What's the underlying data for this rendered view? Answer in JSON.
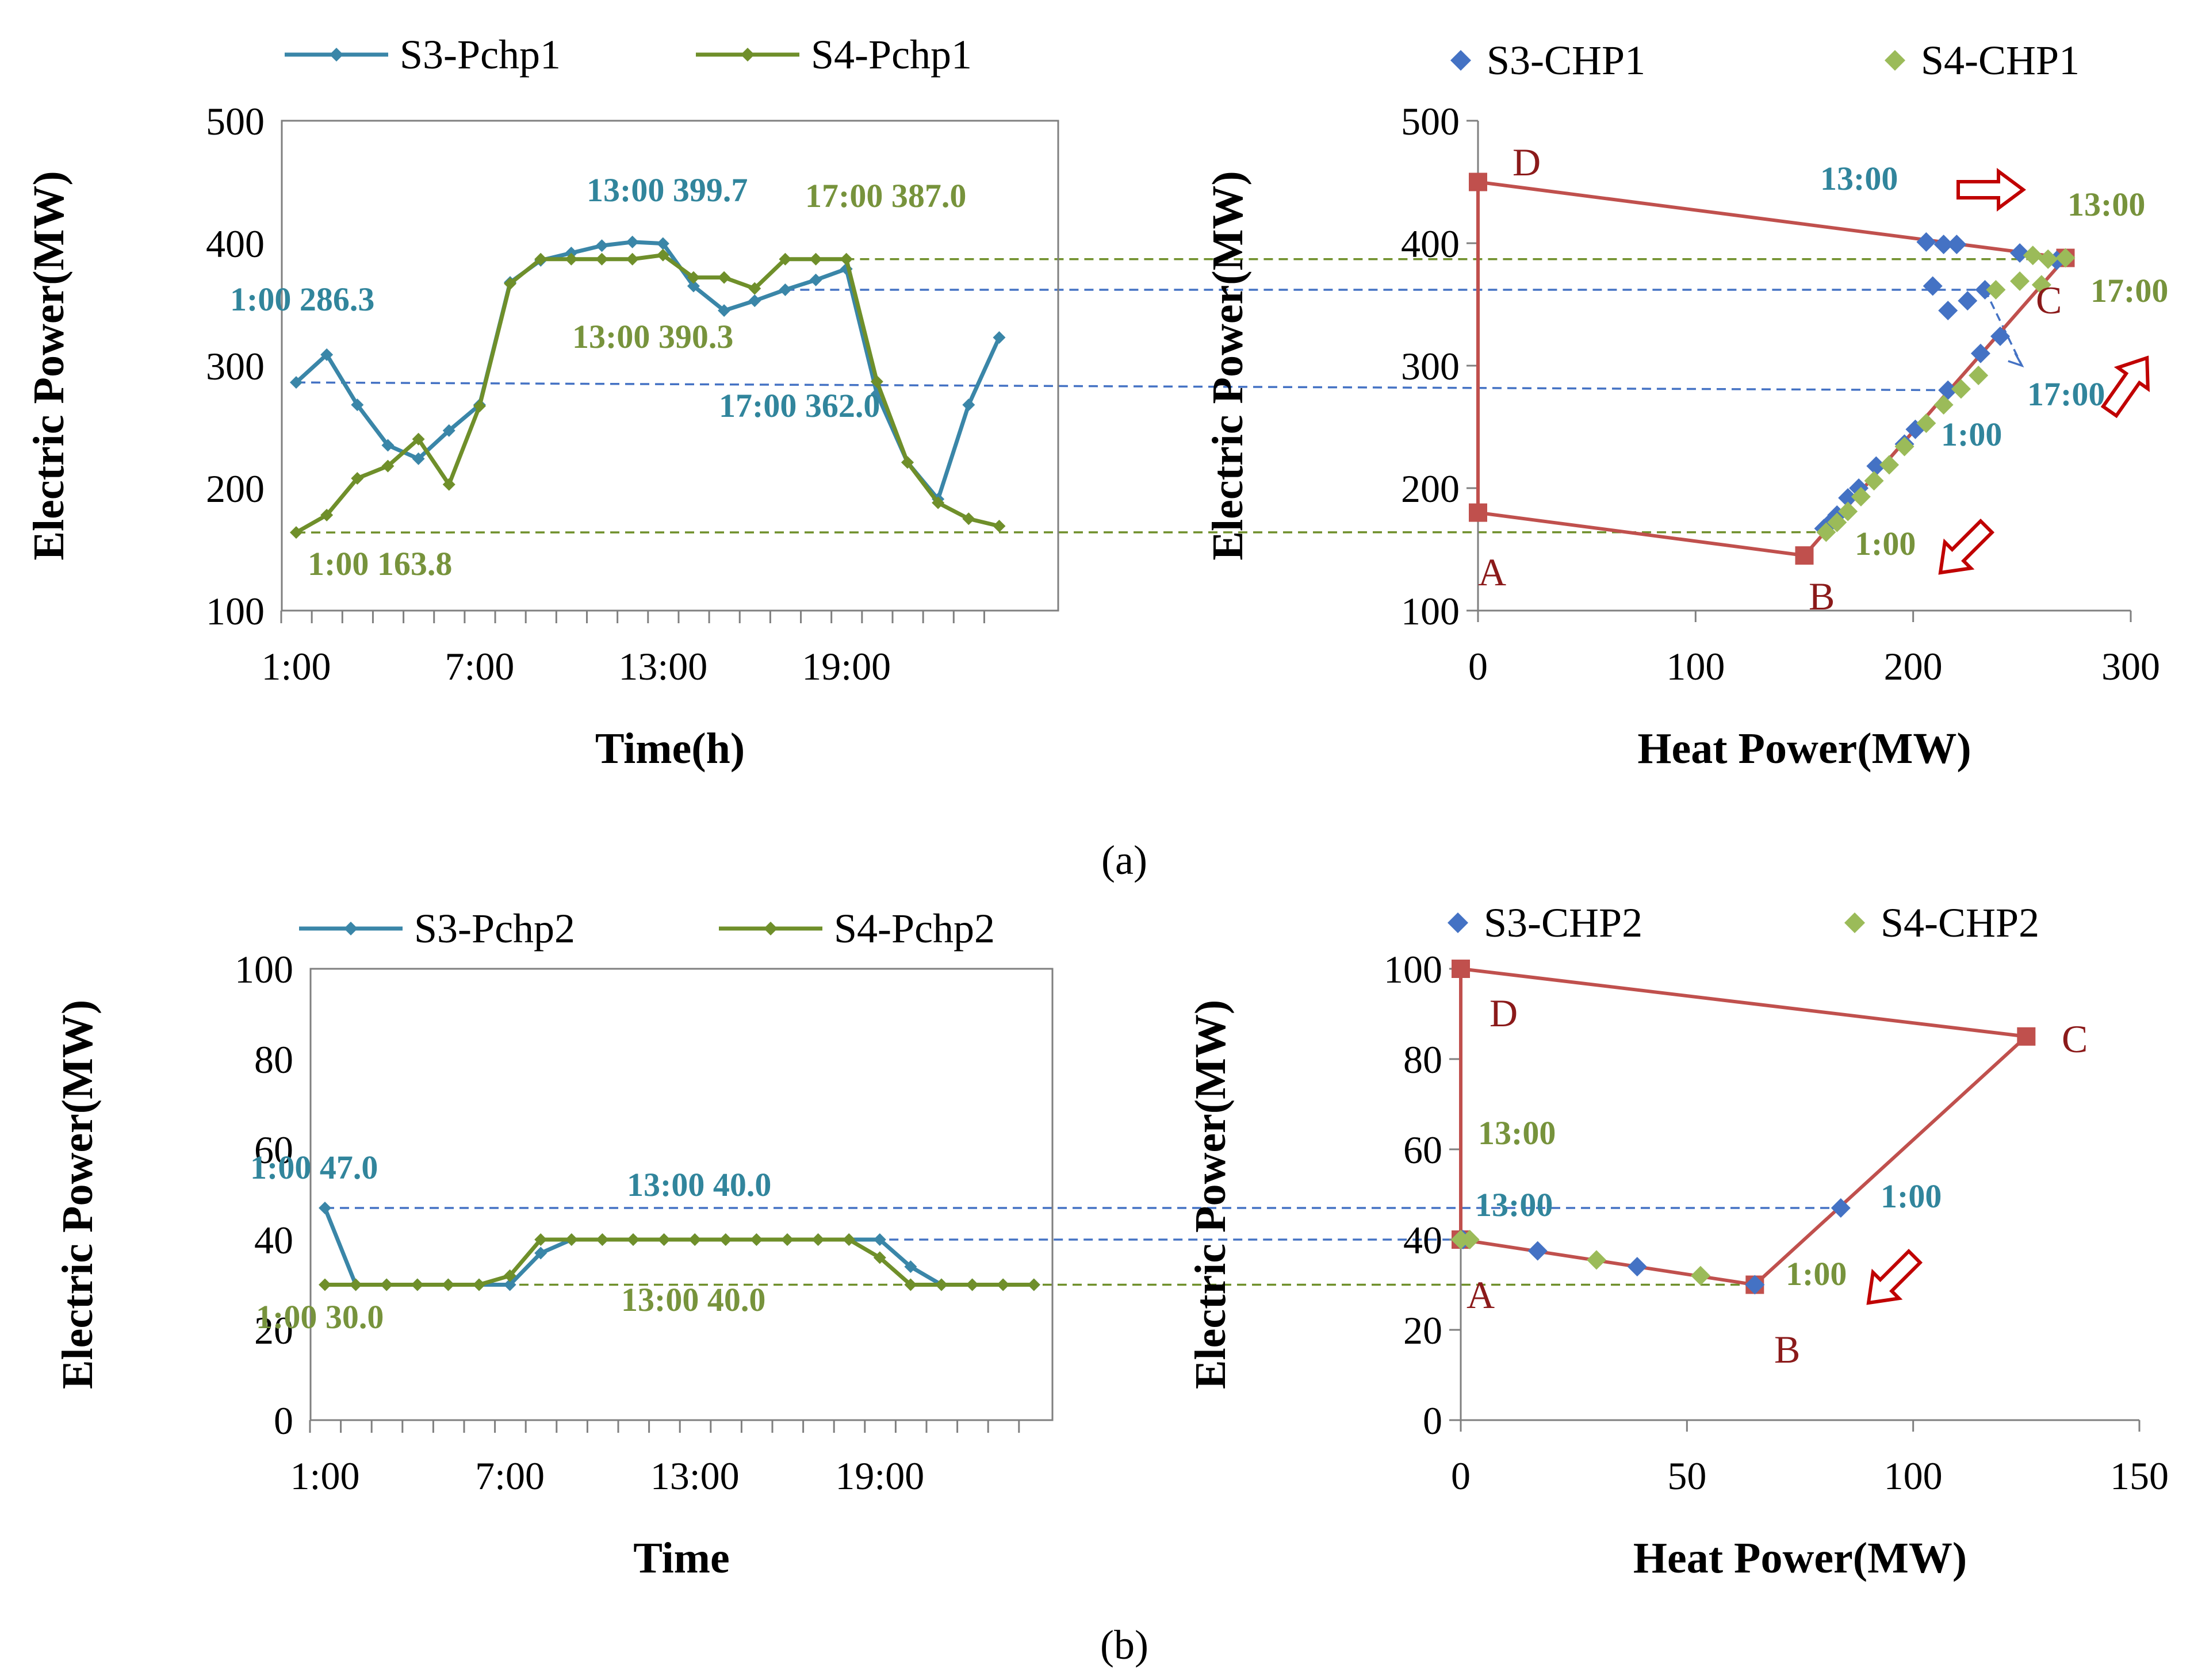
{
  "colors": {
    "s3": "#3a86a8",
    "s4": "#6f8f2a",
    "s3_scatter": "#4472c4",
    "s4_scatter": "#9bbb59",
    "region": "#c0504d",
    "s3_label": "#31859c",
    "s4_label": "#77933c",
    "arrow": "#c00000"
  },
  "captions": [
    "(a)",
    "(b)"
  ],
  "chart_data": [
    {
      "id": "a-left",
      "type": "line",
      "xlabel": "Time(h)",
      "ylabel": "Electric Power(MW)",
      "ylim": [
        100,
        500
      ],
      "yticks": [
        100,
        200,
        300,
        400,
        500
      ],
      "xticks": [
        "1:00",
        "7:00",
        "13:00",
        "19:00"
      ],
      "categories": [
        "1:00",
        "2:00",
        "3:00",
        "4:00",
        "5:00",
        "6:00",
        "7:00",
        "8:00",
        "9:00",
        "10:00",
        "11:00",
        "12:00",
        "13:00",
        "14:00",
        "15:00",
        "16:00",
        "17:00",
        "18:00",
        "19:00",
        "20:00",
        "21:00",
        "22:00",
        "23:00",
        "24:00"
      ],
      "series": [
        {
          "name": "S3-Pchp1",
          "values": [
            286.3,
            309,
            268,
            235,
            224,
            247,
            268,
            368,
            386,
            392,
            398,
            401,
            399.7,
            365,
            345,
            353,
            362,
            370,
            379,
            277,
            221,
            191,
            268,
            323
          ]
        },
        {
          "name": "S4-Pchp1",
          "values": [
            163.8,
            178,
            208,
            218,
            240,
            203,
            267,
            367,
            387,
            387,
            387,
            387,
            390.3,
            372,
            372,
            363,
            387,
            387,
            387,
            287,
            221,
            188,
            175,
            169
          ]
        }
      ],
      "annotations": [
        {
          "text": "1:00 286.3",
          "series": 0
        },
        {
          "text": "13:00 399.7",
          "series": 0
        },
        {
          "text": "17:00 362.0",
          "series": 0
        },
        {
          "text": "1:00 163.8",
          "series": 1
        },
        {
          "text": "13:00 390.3",
          "series": 1
        },
        {
          "text": "17:00 387.0",
          "series": 1
        }
      ]
    },
    {
      "id": "a-right",
      "type": "scatter",
      "xlabel": "Heat Power(MW)",
      "ylabel": "Electric Power(MW)",
      "xlim": [
        0,
        300
      ],
      "ylim": [
        100,
        500
      ],
      "xticks": [
        0,
        100,
        200,
        300
      ],
      "yticks": [
        100,
        200,
        300,
        400,
        500
      ],
      "region": [
        {
          "label": "A",
          "x": 0,
          "y": 180
        },
        {
          "label": "B",
          "x": 150,
          "y": 145
        },
        {
          "label": "C",
          "x": 270,
          "y": 388
        },
        {
          "label": "D",
          "x": 0,
          "y": 450
        }
      ],
      "series": [
        {
          "name": "S3-CHP1",
          "points": [
            [
              206,
              401
            ],
            [
              214,
              399
            ],
            [
              220,
              399
            ],
            [
              249,
              392
            ],
            [
              266,
              386
            ],
            [
              209,
              365
            ],
            [
              216,
              345
            ],
            [
              225,
              353
            ],
            [
              233,
              362
            ],
            [
              240,
              324
            ],
            [
              231,
              310
            ],
            [
              216,
              280
            ],
            [
              201,
              248
            ],
            [
              196,
              236
            ],
            [
              183,
              218
            ],
            [
              175,
              200
            ],
            [
              170,
              192
            ],
            [
              165,
              178
            ],
            [
              162,
              172
            ],
            [
              159,
              167
            ]
          ]
        },
        {
          "name": "S4-CHP1",
          "points": [
            [
              160,
              164
            ],
            [
              165,
              172
            ],
            [
              170,
              181
            ],
            [
              176,
              193
            ],
            [
              182,
              206
            ],
            [
              189,
              219
            ],
            [
              196,
              234
            ],
            [
              206,
              253
            ],
            [
              214,
              268
            ],
            [
              222,
              281
            ],
            [
              230,
              292
            ],
            [
              238,
              362
            ],
            [
              249,
              369
            ],
            [
              255,
              390
            ],
            [
              262,
              387
            ],
            [
              270,
              388
            ],
            [
              259,
              366
            ]
          ]
        }
      ],
      "annotations": [
        {
          "text": "13:00",
          "series": 0
        },
        {
          "text": "17:00",
          "series": 0
        },
        {
          "text": "1:00",
          "series": 0
        },
        {
          "text": "13:00",
          "series": 1
        },
        {
          "text": "17:00",
          "series": 1
        },
        {
          "text": "1:00",
          "series": 1
        }
      ]
    },
    {
      "id": "b-left",
      "type": "line",
      "xlabel": "Time",
      "ylabel": "Electric Power(MW)",
      "ylim": [
        0,
        100
      ],
      "yticks": [
        0,
        20,
        40,
        60,
        80,
        100
      ],
      "xticks": [
        "1:00",
        "7:00",
        "13:00",
        "19:00"
      ],
      "categories": [
        "1:00",
        "2:00",
        "3:00",
        "4:00",
        "5:00",
        "6:00",
        "7:00",
        "8:00",
        "9:00",
        "10:00",
        "11:00",
        "12:00",
        "13:00",
        "14:00",
        "15:00",
        "16:00",
        "17:00",
        "18:00",
        "19:00",
        "20:00",
        "21:00",
        "22:00",
        "23:00",
        "24:00"
      ],
      "series": [
        {
          "name": "S3-Pchp2",
          "values": [
            47,
            30,
            30,
            30,
            30,
            30,
            30,
            37,
            40,
            40,
            40,
            40,
            40,
            40,
            40,
            40,
            40,
            40,
            40,
            34,
            30,
            30,
            30,
            30
          ]
        },
        {
          "name": "S4-Pchp2",
          "values": [
            30,
            30,
            30,
            30,
            30,
            30,
            32,
            40,
            40,
            40,
            40,
            40,
            40,
            40,
            40,
            40,
            40,
            40,
            36,
            30,
            30,
            30,
            30,
            30
          ]
        }
      ],
      "annotations": [
        {
          "text": "1:00 47.0",
          "series": 0
        },
        {
          "text": "13:00 40.0",
          "series": 0
        },
        {
          "text": "1:00 30.0",
          "series": 1
        },
        {
          "text": "13:00 40.0",
          "series": 1
        }
      ]
    },
    {
      "id": "b-right",
      "type": "scatter",
      "xlabel": "Heat Power(MW)",
      "ylabel": "Electric Power(MW)",
      "xlim": [
        0,
        150
      ],
      "ylim": [
        0,
        100
      ],
      "xticks": [
        0,
        50,
        100,
        150
      ],
      "yticks": [
        0,
        20,
        40,
        60,
        80,
        100
      ],
      "region": [
        {
          "label": "A",
          "x": 0,
          "y": 40
        },
        {
          "label": "B",
          "x": 65,
          "y": 30
        },
        {
          "label": "C",
          "x": 125,
          "y": 85
        },
        {
          "label": "D",
          "x": 0,
          "y": 100
        }
      ],
      "series": [
        {
          "name": "S3-CHP2",
          "points": [
            [
              84,
              47
            ],
            [
              0,
              40
            ],
            [
              17,
              37.5
            ],
            [
              39,
              34
            ],
            [
              65,
              30
            ],
            [
              0.5,
              40
            ]
          ]
        },
        {
          "name": "S4-CHP2",
          "points": [
            [
              2,
              40
            ],
            [
              30,
              35.5
            ],
            [
              53,
              32
            ],
            [
              0,
              40
            ]
          ]
        }
      ],
      "annotations": [
        {
          "text": "13:00",
          "series": 1
        },
        {
          "text": "13:00",
          "series": 0
        },
        {
          "text": "1:00",
          "series": 0
        },
        {
          "text": "1:00",
          "series": 1
        }
      ]
    }
  ]
}
